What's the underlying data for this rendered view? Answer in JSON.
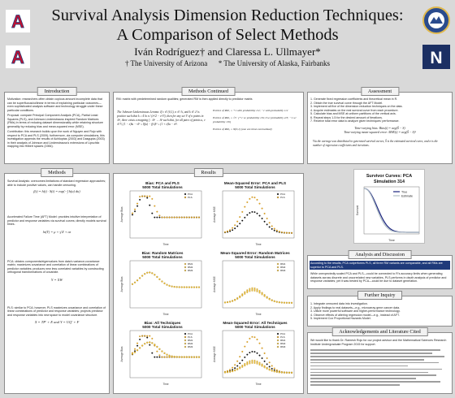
{
  "header": {
    "title_line1": "Survival Analysis Dimension Reduction Techniques:",
    "title_line2": "A Comparison of Select Methods",
    "authors": "Iván Rodríguez† and Claressa L. Ullmayer*",
    "affil1": "† The University of Arizona",
    "affil2": "* The University of Alaska, Fairbanks"
  },
  "logos": {
    "left_top": "A",
    "left_bottom": "A",
    "right_bottom": "N",
    "left_color": "#1f3a7a",
    "right_color": "#1b2f63"
  },
  "introduction": {
    "heading": "Introduction",
    "p1": "Motivation: researchers often obtain copious amount incomplete data that can be superfluous/collinear in terms of explaining particular outcomes—even sophisticated analysis software and technology struggle under these particular conditions.",
    "p2": "Proposal: compare Principal Component Analysis (PCA), Partial Least Squares (PLS), and Johnson-Lindenstrauss inspired Random Matrices (RMs) in terms of reducing dataset dimensionality while retaining structure generality by reducing bias and mean-squared error (MSE).",
    "p3": "Contribution: this research builds upon the work of Nguyen and Rojo with respect to PCA and PLS (2009); furthermore, via computer simulations, this investigation appends the results of Achlioptas (2003) and Dasgupta (2003) in their analysis of Johnson and Lindenstrauss's extensions of Lipschitz mapping into Hilbert spaces (1984)."
  },
  "methods": {
    "heading": "Methods",
    "p1": "Survival Analysis: overcomes limitations of standard regression approaches; able to include positive values, can handle censoring.",
    "eq1": "f(t) = h(t) · S(t) = exp(−∫ h(u) du)",
    "p2": "Accelerated Failure Time (AFT) Model: provides intuitive interpretation of predictor and response variables via survival curves; directly models survival times.",
    "eq2": "ln(T) = μ + γ′Z + σε",
    "p3": "PCA: obtains components/eigenvalues from data's variance-covariance matrix; maximizes covariance and correlation of linear combinations of predictor variables; produces new less correlated variables by constructing orthogonal transformations of covariate.",
    "eq3": "Y = XW",
    "p4": "PLS: similar to PCA; however, PLS maximizes covariance and correlation of linear combinations of predictor and response variables; projects predictor and response variables into new space to model covariance structure.",
    "eq4": "X = TP′ + E and Y = UQ′ + F"
  },
  "methods_continued": {
    "heading": "Methods Continued",
    "p1": "RM: matrix with predetermined random qualities; generated RM is then applied directly to predictor matrix.",
    "lemma": "The Johnson-Lindenstrauss Lemma: If ε ∈ (0,1), n ∈ ℕ, and k ∈ ℤ is positive such that k ≥ 4 ln n / (ε²/2 − ε³/3), then for any set V of n points in ℝᵈ, there exists a mapping f : ℝᵈ → ℝᵏ such that, for all pairs of points u, v ∈ V, (1 − ε)‖u − v‖² ≤ ‖f(u) − f(v)‖² ≤ (1 + ε)‖u − v‖².",
    "entries1": "Entries of RM₁ = +1 with probability 1/2; −1 with probability 1/2",
    "entries2": "Entries of RM₂ = √3 · {+1 w/ probability 1/6; 0 w/ probability 2/3; −1 w/ probability 1/6}",
    "entries3": "Entries of RM₃ = N(0,1) (one are times normalized)"
  },
  "results": {
    "heading": "Results",
    "plots": [
      {
        "title": "Bias: PCA and PLS\n5000 Total Simulations",
        "ylabel": "Average Bias",
        "xlabel": "Time",
        "legend": [
          "PCA",
          "PLS"
        ]
      },
      {
        "title": "Mean-Squared Error: PCA and PLS\n5000 Total Simulations",
        "ylabel": "Average MSE",
        "xlabel": "Time",
        "legend": [
          "PCA",
          "PLS"
        ]
      },
      {
        "title": "Bias: Random Matrices\n5000 Total Simulations",
        "ylabel": "Average Bias",
        "xlabel": "Time",
        "legend": [
          "RM1",
          "RM2",
          "RM3"
        ]
      },
      {
        "title": "Mean-Squared Error: Random Matrices\n5000 Total Simulations",
        "ylabel": "Average MSE",
        "xlabel": "Time",
        "legend": [
          "RM1",
          "RM2",
          "RM3"
        ]
      },
      {
        "title": "Bias: All Techniques\n5000 Total Simulations",
        "ylabel": "Average Bias",
        "xlabel": "Time",
        "legend": [
          "PCA",
          "PLS",
          "RM1",
          "RM2",
          "RM3"
        ]
      },
      {
        "title": "Mean-Squared Error: All Techniques\n5000 Total Simulations",
        "ylabel": "Average MSE",
        "xlabel": "Time",
        "legend": [
          "PCA",
          "PLS",
          "RM1",
          "RM2",
          "RM3"
        ]
      }
    ]
  },
  "assessment": {
    "heading": "Assessment",
    "items": [
      "1. Generate fixed regression coefficients and theoretical mean in R.",
      "2. Obtain the true survival curve through the AFT Model.",
      "3. Implement all five of the dimension reduction techniques on the data.",
      "4. Acquire estimates on the real survival curve from each procedure.",
      "5. Calculate bias and MSE at uniform partitions of the vertical axis.",
      "6. Repeat steps 1-5 for the desired amount of iterations.",
      "7. Receive total error data to analyze given techniques' performance."
    ],
    "eq_bias": "Time-varying bias: Bias(t) = avg(Ŝ − S)",
    "eq_mse": "Time-varying mean-squared error: MSE(t) = avg(Ŝ − S)²",
    "note": "Via the average was distributed to generated survival curves, Ŝ is the estimated survival curve, and n is the number of regression coefficients and iterations."
  },
  "survivor_chart": {
    "title_line1": "Survivor Curves: PCA",
    "title_line2": "Simulation 314",
    "legend": [
      "True",
      "Estimate"
    ],
    "ylabel": "Survival",
    "xlabel": "Time"
  },
  "analysis": {
    "heading": "Analysis and Discussion",
    "highlight": "According to the results, PCA outperforms PLS, all three RM variants are comparable, and all RMs are superior to PCA and PLS.",
    "p1": "While unexpectedly scaled PCA and PLS—could be connected to R's accuracy limits when generating datasets across discrete and uncorrelated new variables, PLS performs in depth analysis of predictor and response variables; yet it was bested by PCA—could be due to dataset generation."
  },
  "further": {
    "heading": "Further Inquiry",
    "items": [
      "1. Integrate censored data into investigation.",
      "2. Apply findings to real datasets—e.g., microarray gene cancer data.",
      "3. Utilize more powerful software and higher-performance technology.",
      "4. Observe effects of altering regression model—e.g., instead of AFT.",
      "5. Implement Cox Proportional Hazards Model."
    ]
  },
  "acknowledgements": {
    "heading": "Acknowledgements and Literature Cited",
    "text": "We would like to thank Dr. Ramesh Rojo for our project advisor and the Mathematical Sciences Research Institute Undergraduate Program 2015 for support."
  },
  "colors": {
    "pca": "#111111",
    "pls": "#e8a51b",
    "rm": "#f0c23c",
    "true_line": "#1a237e",
    "est_line": "#b0bec5"
  }
}
